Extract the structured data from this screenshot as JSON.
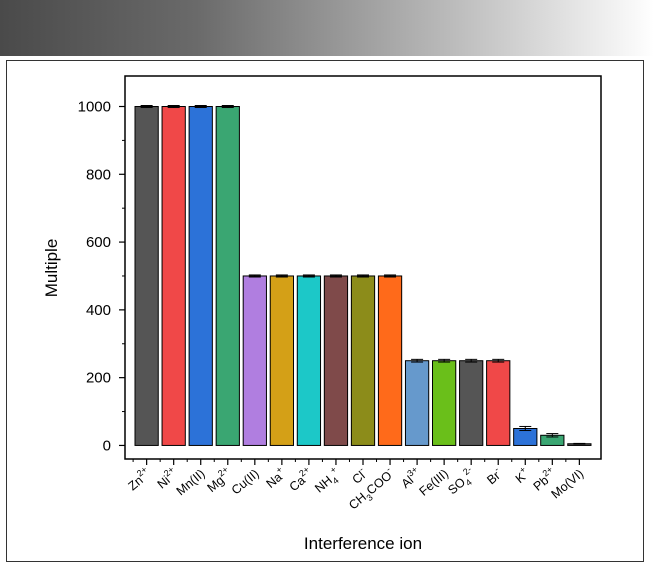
{
  "chart_data": {
    "type": "bar",
    "xlabel": "Interference ion",
    "ylabel": "Multiple",
    "ylim": [
      -40,
      1090
    ],
    "yticks": [
      0,
      200,
      400,
      600,
      800,
      1000
    ],
    "grid": false,
    "categories": [
      {
        "label": "Zn",
        "sup": "2+"
      },
      {
        "label": "Ni",
        "sup": "2+"
      },
      {
        "label": "Mn(II)"
      },
      {
        "label": "Mg",
        "sup": "2+"
      },
      {
        "label": "Cu(II)"
      },
      {
        "label": "Na",
        "sup": "+"
      },
      {
        "label": "Ca",
        "sup": "2+"
      },
      {
        "label": "NH",
        "sub": "4",
        "sup": "+"
      },
      {
        "label": "Cl",
        "sup": "-"
      },
      {
        "label": "CH",
        "sub": "3",
        "after": "COO",
        "sup": "-"
      },
      {
        "label": "Al",
        "sup": "3+"
      },
      {
        "label": "Fe(III)"
      },
      {
        "label": "SO",
        "sub": "4",
        "sup": "2-"
      },
      {
        "label": "Br",
        "sup": "-"
      },
      {
        "label": "K",
        "sup": "+"
      },
      {
        "label": "Pb",
        "sup": "2+"
      },
      {
        "label": "Mo(VI)"
      }
    ],
    "values": [
      1000,
      1000,
      1000,
      1000,
      500,
      500,
      500,
      500,
      500,
      500,
      250,
      250,
      250,
      250,
      50,
      30,
      5
    ],
    "errors": [
      3,
      3,
      3,
      3,
      3,
      3,
      3,
      3,
      3,
      3,
      4,
      4,
      4,
      4,
      6,
      5,
      1
    ],
    "colors": [
      "#555555",
      "#f04848",
      "#2c72d8",
      "#3aa672",
      "#b07ee0",
      "#d4a017",
      "#1cc8c8",
      "#7f4a4a",
      "#8c8c1a",
      "#ff6a1a",
      "#6699cc",
      "#6abf1a",
      "#555555",
      "#f04848",
      "#2c72d8",
      "#3aa672",
      "#555555"
    ]
  }
}
